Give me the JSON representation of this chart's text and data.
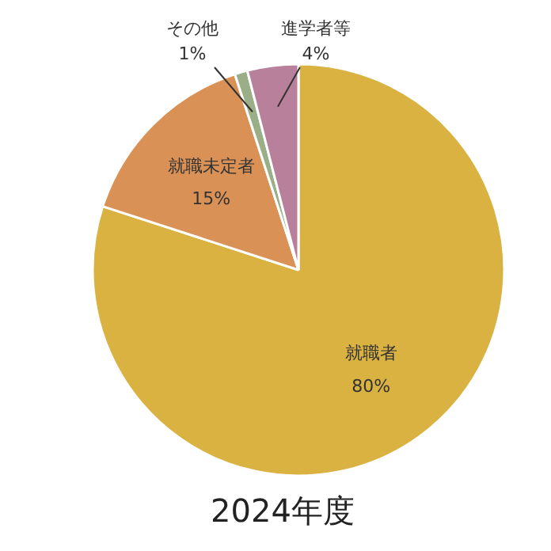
{
  "chart_data": {
    "type": "pie",
    "title": "2024年度",
    "categories": [
      "就職者",
      "就職未定者",
      "その他",
      "進学者等"
    ],
    "values": [
      80,
      15,
      1,
      4
    ],
    "value_labels": [
      "80%",
      "15%",
      "1%",
      "4%"
    ],
    "colors": [
      "#d9b241",
      "#da9155",
      "#9aaf88",
      "#b8809a"
    ]
  }
}
